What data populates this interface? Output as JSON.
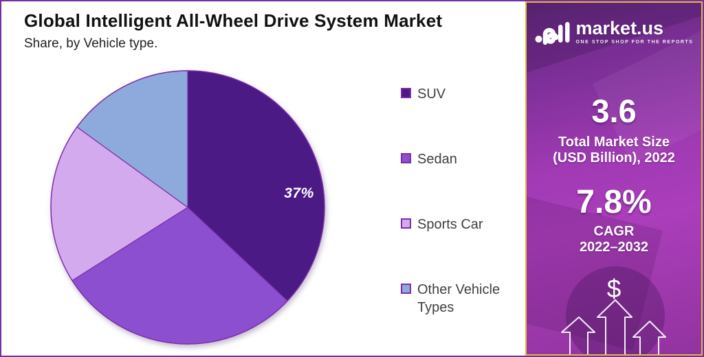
{
  "header": {
    "title": "Global Intelligent All-Wheel Drive System Market",
    "subtitle": "Share, by Vehicle type."
  },
  "chart_data": {
    "type": "pie",
    "title": "Global Intelligent All-Wheel Drive System Market",
    "subtitle": "Share, by Vehicle type.",
    "categories": [
      "SUV",
      "Sedan",
      "Sports Car",
      "Other Vehicle Types"
    ],
    "values": [
      37,
      29,
      19,
      15
    ],
    "colors": [
      "#4B1A84",
      "#8B4FD0",
      "#D4AAEE",
      "#8EA9DB"
    ],
    "stroke_color": "#7B2DA8",
    "start_angle_deg": 0,
    "direction": "clockwise",
    "legend_position": "right",
    "labels": [
      {
        "slice": "SUV",
        "text": "37%"
      }
    ]
  },
  "sidebar": {
    "brand": "market.us",
    "tagline": "ONE STOP SHOP FOR THE REPORTS",
    "stats": [
      {
        "value": "3.6",
        "label_line1": "Total Market Size",
        "label_line2": "(USD Billion), 2022"
      },
      {
        "value": "7.8%",
        "label_line1": "CAGR",
        "label_line2": "2022–2032"
      }
    ],
    "dollar_symbol": "$",
    "border_color": "#E8B73E"
  },
  "frame": {
    "border_color": "#7030A0",
    "background": "#FFFFFF"
  }
}
